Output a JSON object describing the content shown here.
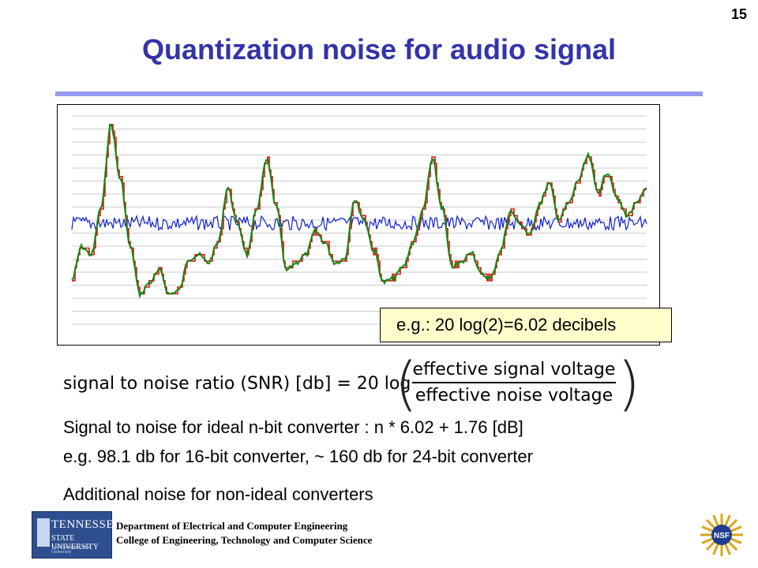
{
  "slide": {
    "number": "15",
    "title": "Quantization noise for audio signal"
  },
  "figure": {
    "callout": "e.g.: 20 log(2)=6.02 decibels",
    "colors": {
      "quantized": "#dd1111",
      "signal": "#118811",
      "noise": "#1122cc",
      "grid": "#cccccc"
    }
  },
  "formula": {
    "lhs": "signal to noise ratio (SNR) [db] = 20 log",
    "numerator": "effective signal voltage",
    "denominator": "effective noise voltage"
  },
  "bullets": [
    "Signal to noise for ideal n-bit converter : n * 6.02 + 1.76 [dB]",
    "e.g. 98.1 db for 16-bit converter, ~ 160 db for 24-bit converter",
    "Additional noise for non-ideal converters"
  ],
  "footer": {
    "logo_word": "TENNESSEE",
    "logo_sub": "STATE UNIVERSITY",
    "logo_tag": "Two Campuses. One University",
    "dept_line1": "Department of Electrical and Computer Engineering",
    "dept_line2": "College of Engineering, Technology and Computer Science",
    "nsf_label": "NSF"
  }
}
